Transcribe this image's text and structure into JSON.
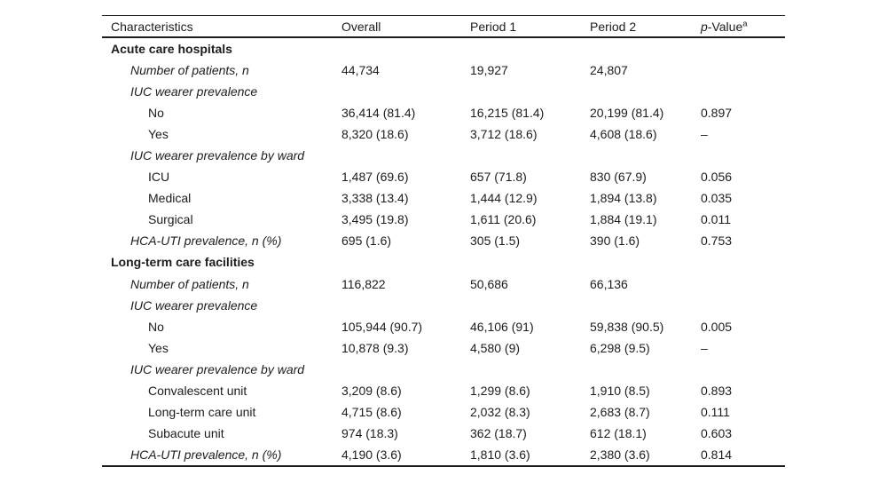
{
  "table": {
    "header": {
      "characteristics": "Characteristics",
      "overall": "Overall",
      "period1": "Period 1",
      "period2": "Period 2",
      "pvalue_p": "p",
      "pvalue_rest": "-Value",
      "pvalue_sup": "a"
    },
    "rows": [
      {
        "label": "Acute care hospitals",
        "level": "section",
        "overall": "",
        "period1": "",
        "period2": "",
        "pvalue": ""
      },
      {
        "label": "Number of patients, n",
        "level": "sub",
        "overall": "44,734",
        "period1": "19,927",
        "period2": "24,807",
        "pvalue": ""
      },
      {
        "label": "IUC wearer prevalence",
        "level": "sub",
        "overall": "",
        "period1": "",
        "period2": "",
        "pvalue": ""
      },
      {
        "label": "No",
        "level": "item",
        "overall": "36,414 (81.4)",
        "period1": "16,215 (81.4)",
        "period2": "20,199 (81.4)",
        "pvalue": "0.897"
      },
      {
        "label": "Yes",
        "level": "item",
        "overall": "8,320 (18.6)",
        "period1": "3,712 (18.6)",
        "period2": "4,608 (18.6)",
        "pvalue": "–"
      },
      {
        "label": "IUC wearer prevalence by ward",
        "level": "sub",
        "overall": "",
        "period1": "",
        "period2": "",
        "pvalue": ""
      },
      {
        "label": "ICU",
        "level": "item",
        "overall": "1,487 (69.6)",
        "period1": "657 (71.8)",
        "period2": "830 (67.9)",
        "pvalue": "0.056"
      },
      {
        "label": "Medical",
        "level": "item",
        "overall": "3,338 (13.4)",
        "period1": "1,444 (12.9)",
        "period2": "1,894 (13.8)",
        "pvalue": "0.035"
      },
      {
        "label": "Surgical",
        "level": "item",
        "overall": "3,495 (19.8)",
        "period1": "1,611 (20.6)",
        "period2": "1,884 (19.1)",
        "pvalue": "0.011"
      },
      {
        "label": "HCA-UTI prevalence, n (%)",
        "level": "sub",
        "overall": "695 (1.6)",
        "period1": "305 (1.5)",
        "period2": "390 (1.6)",
        "pvalue": "0.753"
      },
      {
        "label": "Long-term care facilities",
        "level": "section",
        "overall": "",
        "period1": "",
        "period2": "",
        "pvalue": ""
      },
      {
        "label": "Number of patients, n",
        "level": "sub",
        "overall": "116,822",
        "period1": "50,686",
        "period2": "66,136",
        "pvalue": ""
      },
      {
        "label": "IUC wearer prevalence",
        "level": "sub",
        "overall": "",
        "period1": "",
        "period2": "",
        "pvalue": ""
      },
      {
        "label": "No",
        "level": "item",
        "overall": "105,944 (90.7)",
        "period1": "46,106 (91)",
        "period2": "59,838 (90.5)",
        "pvalue": "0.005"
      },
      {
        "label": "Yes",
        "level": "item",
        "overall": "10,878 (9.3)",
        "period1": "4,580 (9)",
        "period2": "6,298 (9.5)",
        "pvalue": "–"
      },
      {
        "label": "IUC wearer prevalence by ward",
        "level": "sub",
        "overall": "",
        "period1": "",
        "period2": "",
        "pvalue": ""
      },
      {
        "label": "Convalescent unit",
        "level": "item",
        "overall": "3,209 (8.6)",
        "period1": "1,299 (8.6)",
        "period2": "1,910 (8.5)",
        "pvalue": "0.893"
      },
      {
        "label": "Long-term care unit",
        "level": "item",
        "overall": "4,715 (8.6)",
        "period1": "2,032 (8.3)",
        "period2": "2,683 (8.7)",
        "pvalue": "0.111"
      },
      {
        "label": "Subacute unit",
        "level": "item",
        "overall": "974 (18.3)",
        "period1": "362 (18.7)",
        "period2": "612 (18.1)",
        "pvalue": "0.603"
      },
      {
        "label": "HCA-UTI prevalence, n (%)",
        "level": "sub",
        "overall": "4,190 (3.6)",
        "period1": "1,810 (3.6)",
        "period2": "2,380 (3.6)",
        "pvalue": "0.814"
      }
    ]
  }
}
